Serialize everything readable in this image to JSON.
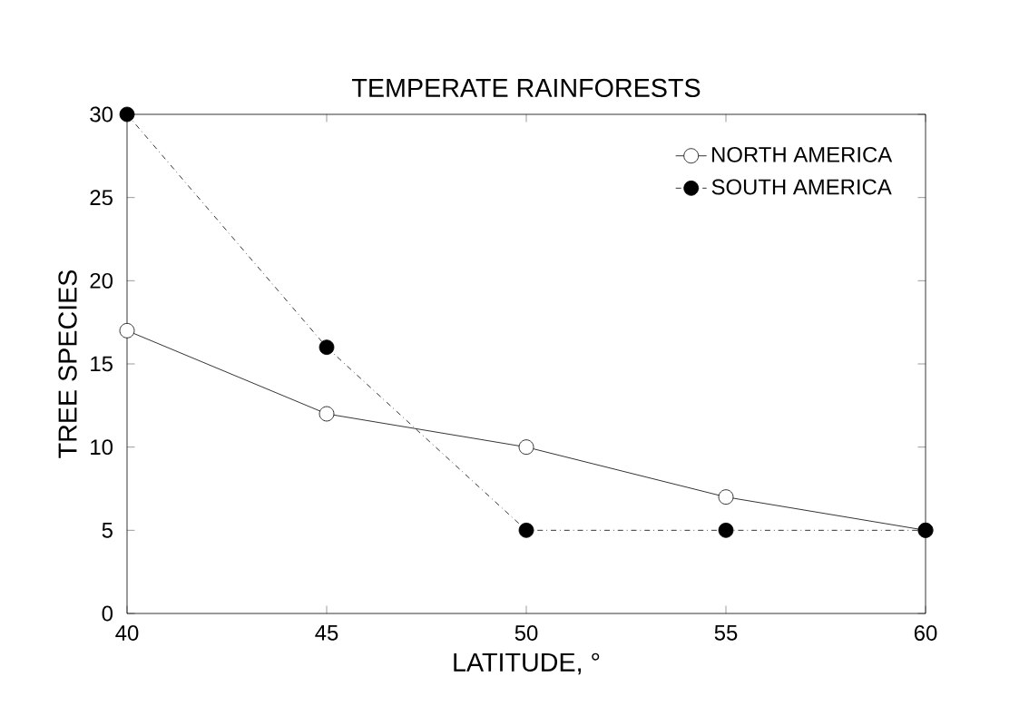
{
  "chart_data": {
    "type": "line",
    "title": "TEMPERATE RAINFORESTS",
    "xlabel": "LATITUDE, °",
    "ylabel": "TREE SPECIES",
    "x": [
      40,
      45,
      50,
      55,
      60
    ],
    "series": [
      {
        "name": "NORTH AMERICA",
        "color": "#000000",
        "values": [
          17,
          12,
          10,
          7,
          5
        ],
        "line_style": "solid"
      },
      {
        "name": "SOUTH AMERICA",
        "color": "#000000",
        "values": [
          30,
          16,
          5,
          5,
          5
        ],
        "line_style": "dashed"
      }
    ],
    "xlim": [
      40,
      60
    ],
    "xticks": [
      40,
      45,
      50,
      55,
      60
    ],
    "ylim": [
      0,
      30
    ],
    "yticks": [
      0,
      5,
      10,
      15,
      20,
      25,
      30
    ],
    "marker": "circle",
    "legend": "top right",
    "grid": false
  }
}
